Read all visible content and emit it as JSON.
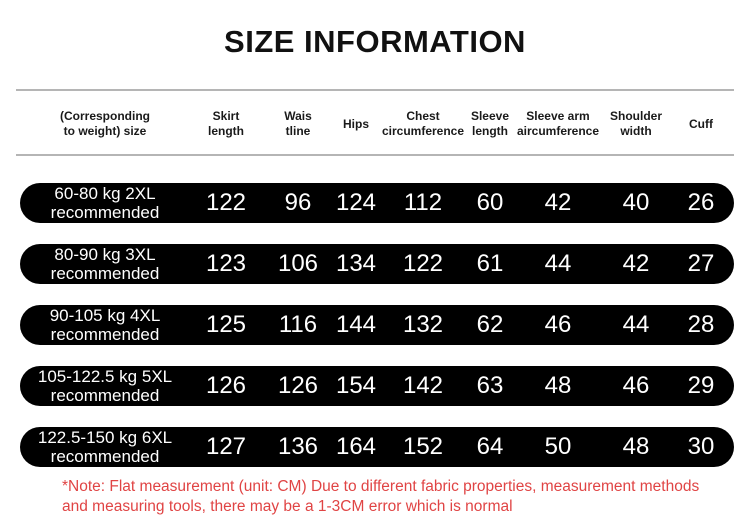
{
  "title": "SIZE INFORMATION",
  "colors": {
    "pill_background": "#000000",
    "pill_text": "#ffffff",
    "divider_gray": "#b5b5b5",
    "note_red": "#e04444",
    "title_color": "#111111"
  },
  "table": {
    "columns": [
      {
        "line1": "(Corresponding",
        "line2": "to weight) size"
      },
      {
        "line1": "Skirt",
        "line2": "length"
      },
      {
        "line1": "Wais",
        "line2": "tline"
      },
      {
        "line1": "Hips",
        "line2": ""
      },
      {
        "line1": "Chest",
        "line2": "circumference"
      },
      {
        "line1": "Sleeve",
        "line2": "length"
      },
      {
        "line1": "Sleeve arm",
        "line2": "aircumference"
      },
      {
        "line1": "Shoulder",
        "line2": "width"
      },
      {
        "line1": "Cuff",
        "line2": ""
      }
    ],
    "rows": [
      {
        "label_line1": "60-80 kg 2XL",
        "label_line2": "recommended",
        "values": [
          122,
          96,
          124,
          112,
          60,
          42,
          40,
          26
        ]
      },
      {
        "label_line1": "80-90 kg 3XL",
        "label_line2": "recommended",
        "values": [
          123,
          106,
          134,
          122,
          61,
          44,
          42,
          27
        ]
      },
      {
        "label_line1": "90-105 kg 4XL",
        "label_line2": "recommended",
        "values": [
          125,
          116,
          144,
          132,
          62,
          46,
          44,
          28
        ]
      },
      {
        "label_line1": "105-122.5 kg 5XL",
        "label_line2": "recommended",
        "values": [
          126,
          126,
          154,
          142,
          63,
          48,
          46,
          29
        ]
      },
      {
        "label_line1": "122.5-150 kg 6XL",
        "label_line2": "recommended",
        "values": [
          127,
          136,
          164,
          152,
          64,
          50,
          48,
          30
        ]
      }
    ]
  },
  "note": {
    "line1": "*Note: Flat measurement (unit: CM) Due to different fabric properties, measurement methods",
    "line2": "and measuring tools, there may be a 1-3CM error which is normal"
  },
  "chart_data": {
    "type": "table",
    "title": "SIZE INFORMATION",
    "unit": "CM",
    "columns": [
      "(Corresponding to weight) size",
      "Skirt length",
      "Waistline",
      "Hips",
      "Chest circumference",
      "Sleeve length",
      "Sleeve arm aircumference",
      "Shoulder width",
      "Cuff"
    ],
    "rows": [
      [
        "60-80 kg 2XL recommended",
        122,
        96,
        124,
        112,
        60,
        42,
        40,
        26
      ],
      [
        "80-90 kg 3XL recommended",
        123,
        106,
        134,
        122,
        61,
        44,
        42,
        27
      ],
      [
        "90-105 kg 4XL recommended",
        125,
        116,
        144,
        132,
        62,
        46,
        44,
        28
      ],
      [
        "105-122.5 kg 5XL recommended",
        126,
        126,
        154,
        142,
        63,
        48,
        46,
        29
      ],
      [
        "122.5-150 kg 6XL recommended",
        127,
        136,
        164,
        152,
        64,
        50,
        48,
        30
      ]
    ]
  }
}
